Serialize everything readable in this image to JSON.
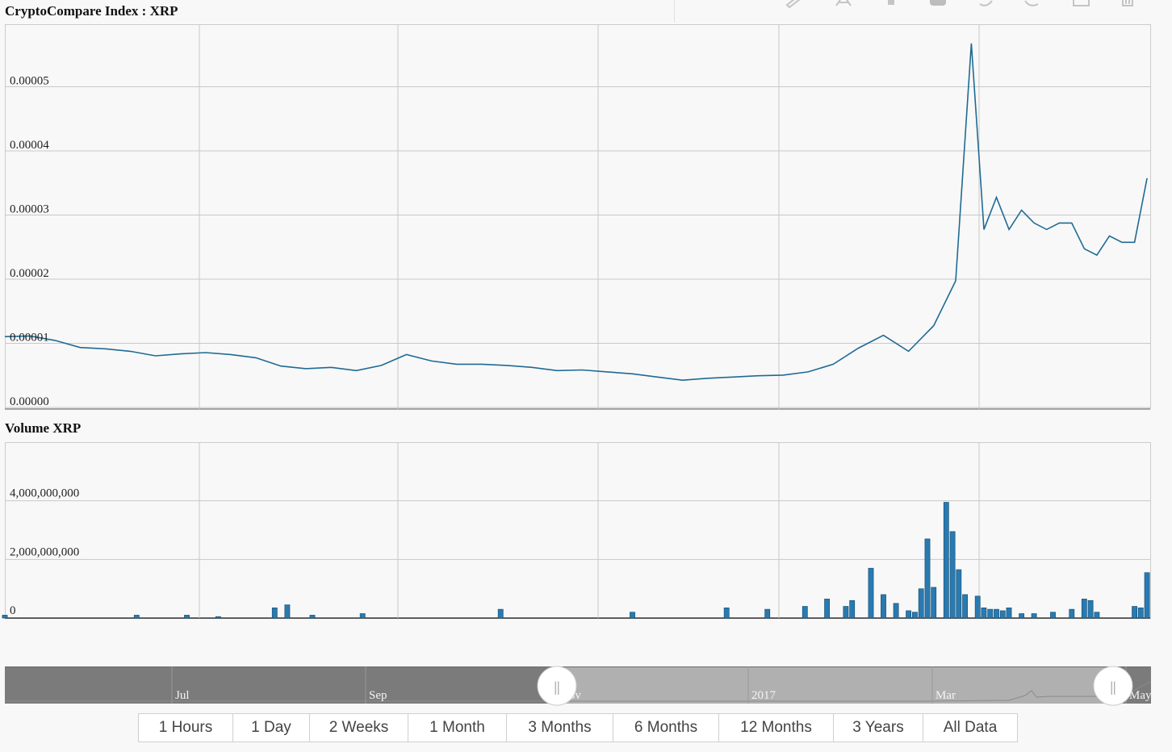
{
  "colors": {
    "line": "#1f6a94",
    "bar": "#2a7ab0",
    "bar_stroke": "#0f4a70",
    "active_range": "#f7a035",
    "navigator_mask": "#7b7b7b",
    "navigator_selected": "#b0b0b0"
  },
  "toolbar_icons": [
    "pencil-icon",
    "text-icon",
    "fill-icon",
    "square-icon",
    "undo-icon",
    "redo-icon",
    "save-icon",
    "trash-icon"
  ],
  "chart_data": [
    {
      "type": "line",
      "title": "CryptoCompare Index : XRP",
      "y_ticks": [
        "0.00000",
        "0.00001",
        "0.00002",
        "0.00003",
        "0.00004",
        "0.00005"
      ],
      "ylim": [
        0,
        6e-05
      ],
      "x_ticks": [
        "Jul",
        "Sep",
        "Nov",
        "2017",
        "Mar",
        "May"
      ],
      "x_days": [
        0,
        8,
        16,
        24,
        32,
        40,
        48,
        56,
        64,
        72,
        80,
        88,
        96,
        104,
        112,
        120,
        128,
        136,
        144,
        152,
        160,
        168,
        176,
        184,
        192,
        200,
        208,
        216,
        224,
        232,
        240,
        248,
        256,
        264,
        272,
        280,
        288,
        296,
        303,
        308,
        312,
        316,
        320,
        324,
        328,
        332,
        336,
        340,
        344,
        348,
        352,
        356,
        360,
        364
      ],
      "values": [
        1.13e-05,
        1.14e-05,
        1.07e-05,
        9.6e-06,
        9.4e-06,
        9e-06,
        8.3e-06,
        8.6e-06,
        8.8e-06,
        8.5e-06,
        8e-06,
        6.7e-06,
        6.3e-06,
        6.5e-06,
        6e-06,
        6.8e-06,
        8.5e-06,
        7.5e-06,
        7e-06,
        7e-06,
        6.8e-06,
        6.5e-06,
        6e-06,
        6.1e-06,
        5.8e-06,
        5.5e-06,
        5e-06,
        4.5e-06,
        4.8e-06,
        5e-06,
        5.2e-06,
        5.3e-06,
        5.8e-06,
        7e-06,
        9.5e-06,
        1.15e-05,
        9e-06,
        1.3e-05,
        2e-05,
        5.7e-05,
        2.8e-05,
        3.3e-05,
        2.8e-05,
        3.1e-05,
        2.9e-05,
        2.8e-05,
        2.9e-05,
        2.9e-05,
        2.5e-05,
        2.4e-05,
        2.7e-05,
        2.6e-05,
        2.6e-05,
        3.6e-05
      ]
    },
    {
      "type": "bar",
      "title": "Volume XRP",
      "y_ticks": [
        "0",
        "2,000,000,000",
        "4,000,000,000"
      ],
      "ylim": [
        0,
        6000000000
      ],
      "x_days": [
        0,
        42,
        58,
        68,
        86,
        90,
        98,
        114,
        158,
        200,
        230,
        243,
        255,
        262,
        268,
        270,
        276,
        280,
        284,
        288,
        290,
        292,
        294,
        296,
        300,
        302,
        304,
        306,
        310,
        312,
        314,
        316,
        318,
        320,
        324,
        328,
        334,
        340,
        344,
        346,
        348,
        360,
        362,
        364
      ],
      "values": [
        100000000,
        100000000,
        100000000,
        50000000,
        350000000,
        450000000,
        100000000,
        150000000,
        300000000,
        200000000,
        350000000,
        300000000,
        400000000,
        650000000,
        400000000,
        600000000,
        1700000000,
        800000000,
        500000000,
        250000000,
        200000000,
        1000000000,
        2700000000,
        1050000000,
        3950000000,
        2950000000,
        1650000000,
        800000000,
        750000000,
        350000000,
        300000000,
        300000000,
        250000000,
        350000000,
        150000000,
        150000000,
        200000000,
        300000000,
        650000000,
        600000000,
        200000000,
        400000000,
        350000000,
        1550000000
      ]
    }
  ],
  "navigator": {
    "labels": [
      "Jul",
      "Sep",
      "Nov",
      "2017",
      "Mar",
      "May"
    ],
    "handle_glyph": "||"
  },
  "range_selector": {
    "buttons": [
      "1 Hours",
      "1 Day",
      "2 Weeks",
      "1 Month",
      "3 Months",
      "6 Months",
      "12 Months",
      "3 Years",
      "All Data"
    ],
    "active_index": 6
  }
}
